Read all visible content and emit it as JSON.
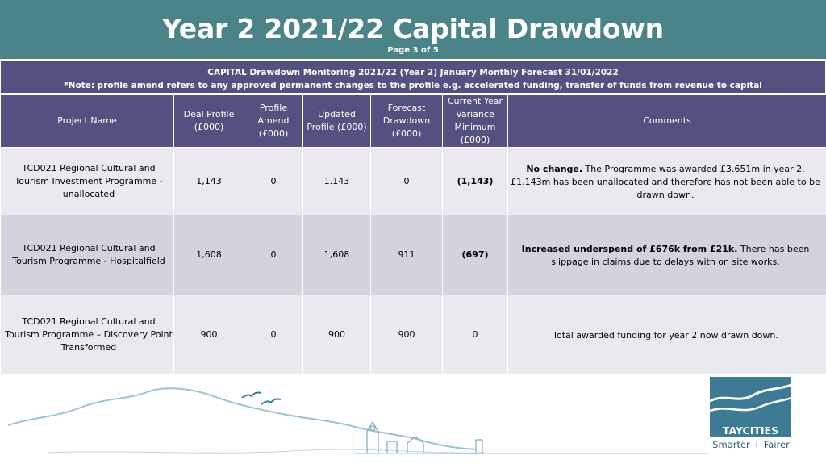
{
  "header": {
    "title": "Year 2 2021/22 Capital Drawdown",
    "page": "Page 3 of 5"
  },
  "banner": {
    "line1": "CAPITAL Drawdown Monitoring 2021/22 (Year 2) January Monthly Forecast 31/01/2022",
    "line2": "*Note: profile amend refers to any approved permanent changes to the profile e.g. accelerated funding, transfer of funds from revenue to capital"
  },
  "table": {
    "headers": {
      "project_name": "Project Name",
      "deal_profile": "Deal Profile (£000)",
      "profile_amend": "Profile Amend (£000)",
      "updated_profile": "Updated Profile (£000)",
      "forecast_drawdown": "Forecast Drawdown (£000)",
      "variance": "Current Year Variance Minimum (£000)",
      "comments": "Comments"
    },
    "rows": [
      {
        "project_name": "TCD021 Regional Cultural and Tourism Investment Programme - unallocated",
        "deal_profile": "1,143",
        "profile_amend": "0",
        "updated_profile": "1.143",
        "forecast_drawdown": "0",
        "variance": "(1,143)",
        "comment_bold": "No change.",
        "comment_text": " The Programme was awarded £3.651m in year 2. £1.143m has been unallocated and therefore has not been able to be drawn down."
      },
      {
        "project_name": "TCD021 Regional Cultural and Tourism Programme - Hospitalfield",
        "deal_profile": "1,608",
        "profile_amend": "0",
        "updated_profile": "1,608",
        "forecast_drawdown": "911",
        "variance": "(697)",
        "comment_bold": "Increased underspend of £676k from £21k.",
        "comment_text": " There has been slippage in claims due to delays with on site works."
      },
      {
        "project_name": "TCD021 Regional Cultural and Tourism Programme – Discovery Point Transformed",
        "deal_profile": "900",
        "profile_amend": "0",
        "updated_profile": "900",
        "forecast_drawdown": "900",
        "variance": "0",
        "comment_bold": "",
        "comment_text": "Total awarded funding for year 2 now drawn down."
      }
    ]
  },
  "logo": {
    "name": "TAYCITIES",
    "tagline": "Smarter + Fairer"
  }
}
